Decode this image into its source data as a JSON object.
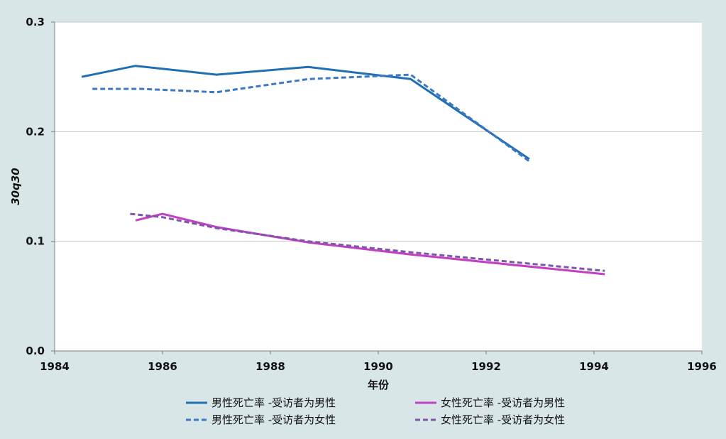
{
  "chart_data": {
    "type": "line",
    "title": "",
    "xlabel": "年份",
    "ylabel": "30q30",
    "xlim": [
      1984,
      1996
    ],
    "ylim": [
      0,
      0.3
    ],
    "xticks": [
      1984,
      1986,
      1988,
      1990,
      1992,
      1994,
      1996
    ],
    "xtick_labels": [
      "1984",
      "1986",
      "1988",
      "1990",
      "1992",
      "1994",
      "1996"
    ],
    "yticks": [
      0,
      0.1,
      0.2,
      0.3
    ],
    "ytick_labels": [
      "0.0",
      "0.1",
      "0.2",
      "0.3"
    ],
    "grid": "horizontal",
    "legend_position": "bottom",
    "series": [
      {
        "name": "男性死亡率 -受访者为男性",
        "color": "#1f6fb3",
        "dash": "solid",
        "x": [
          1984.5,
          1985.5,
          1987.0,
          1988.7,
          1990.6,
          1992.8
        ],
        "y": [
          0.25,
          0.26,
          0.252,
          0.259,
          0.248,
          0.175
        ]
      },
      {
        "name": "男性死亡率 -受访者为女性",
        "color": "#3c78c3",
        "dash": "dashed",
        "x": [
          1984.7,
          1985.6,
          1987.0,
          1988.7,
          1990.6,
          1992.8
        ],
        "y": [
          0.239,
          0.239,
          0.236,
          0.248,
          0.252,
          0.173
        ]
      },
      {
        "name": "女性死亡率 -受访者为男性",
        "color": "#c23ec2",
        "dash": "solid",
        "x": [
          1985.5,
          1986.0,
          1987.0,
          1988.7,
          1990.6,
          1994.2
        ],
        "y": [
          0.119,
          0.125,
          0.113,
          0.099,
          0.088,
          0.07
        ]
      },
      {
        "name": "女性死亡率 -受访者为女性",
        "color": "#7e55a8",
        "dash": "dashed",
        "x": [
          1985.4,
          1986.0,
          1987.0,
          1988.7,
          1990.6,
          1994.2
        ],
        "y": [
          0.125,
          0.122,
          0.112,
          0.1,
          0.09,
          0.073
        ]
      }
    ]
  }
}
